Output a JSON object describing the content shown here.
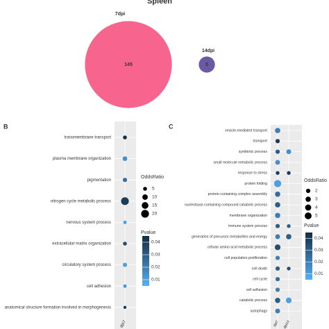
{
  "chart_data": [
    {
      "type": "venn",
      "title": "Spleen",
      "sets": [
        {
          "name": "7dpi",
          "value": 145,
          "color": "#f7658f"
        },
        {
          "name": "14dpi",
          "value": 5,
          "color": "#6a5aa6"
        }
      ]
    },
    {
      "type": "dotplot",
      "panel": "B",
      "categories": [
        "transmembrane transport",
        "plasma membrane organization",
        "pigmentation",
        "nitrogen cycle metabolic process",
        "nervous system process",
        "extracellular matrix organization",
        "circulatory system process",
        "cell adhesion",
        "anatomical structure formation involved in morphogenesis"
      ],
      "series": [
        {
          "name": "dpi7",
          "values": [
            5,
            7,
            6,
            20,
            4,
            5,
            6,
            4,
            3
          ],
          "pvalues": [
            0.045,
            0.015,
            0.025,
            0.04,
            0.01,
            0.035,
            0.01,
            0.012,
            0.042
          ]
        }
      ],
      "size_label": "OddsRatio",
      "size_ticks": [
        5,
        10,
        15,
        20
      ],
      "color_label": "Pvalue",
      "color_ticks": [
        0.01,
        0.02,
        0.03,
        0.04
      ],
      "clim": [
        0.005,
        0.045
      ],
      "color_low": "#56b1f7",
      "color_high": "#132b43"
    },
    {
      "type": "dotplot",
      "panel": "C",
      "categories": [
        "vesicle-mediated transport",
        "transport",
        "symbiotic process",
        "small molecule metabolic process",
        "response to stress",
        "protein folding",
        "protein-containing complex assembly",
        "nucleobase-containing compound catabolic process",
        "membrane organization",
        "immune system process",
        "generation of precursor metabolites and energy",
        "cellular amino acid metabolic process",
        "cell population proliferation",
        "cell death",
        "cell cycle",
        "cell adhesion",
        "catabolic process",
        "autophagy"
      ],
      "series": [
        {
          "name": "dpi7",
          "values": [
            3,
            2,
            2,
            2.5,
            1.5,
            5.5,
            3,
            3,
            3,
            2,
            2.5,
            3.5,
            2,
            2,
            2,
            2,
            3,
            2.5
          ],
          "pvalues": [
            0.02,
            0.04,
            0.03,
            0.015,
            0.04,
            0.01,
            0.025,
            0.03,
            0.02,
            0.03,
            0.02,
            0.035,
            0.02,
            0.03,
            0.025,
            0.02,
            0.03,
            0.02
          ]
        },
        {
          "name": "dpi14",
          "values": [
            null,
            null,
            2.5,
            null,
            1.5,
            null,
            null,
            null,
            null,
            1.5,
            3,
            null,
            null,
            1.5,
            null,
            null,
            3.5,
            null
          ],
          "pvalues": [
            null,
            null,
            0.015,
            null,
            0.04,
            null,
            null,
            null,
            null,
            0.03,
            0.03,
            null,
            null,
            0.035,
            null,
            null,
            0.01,
            null
          ]
        }
      ],
      "size_label": "OddsRatio",
      "size_ticks": [
        2,
        3,
        4,
        5
      ],
      "color_label": "Pvalue",
      "color_ticks": [
        0.01,
        0.02,
        0.03,
        0.04
      ],
      "clim": [
        0.005,
        0.045
      ],
      "color_low": "#56b1f7",
      "color_high": "#132b43"
    }
  ]
}
